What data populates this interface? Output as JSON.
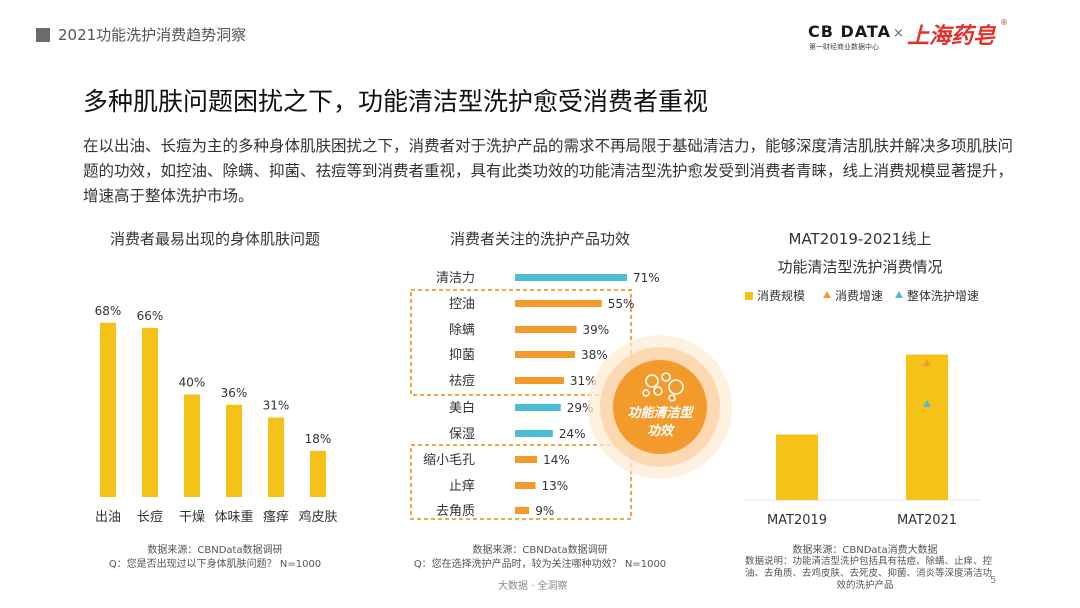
{
  "header": {
    "title": "2021功能洗护消费趋势洞察",
    "logo_main": "CB DATA",
    "logo_sub": "第一财经商业数据中心",
    "logo_times": "×",
    "logo_partner": "上海药皂",
    "logo_reg": "®"
  },
  "headline": "多种肌肤问题困扰之下，功能清洁型洗护愈受消费者重视",
  "intro": "在以出油、长痘为主的多种身体肌肤困扰之下，消费者对于洗护产品的需求不再局限于基础清洁力，能够深度清洁肌肤并解决多项肌肤问题的功效，如控油、除螨、抑菌、祛痘等到消费者重视，具有此类功效的功能清洁型洗护愈发受到消费者青睐，线上消费规模显著提升，增速高于整体洗护市场。",
  "colors": {
    "yellow": "#f5c218",
    "orange": "#f39a2c",
    "blue": "#4dbdd6",
    "dash": "#f39a2c"
  },
  "chart_data": [
    {
      "type": "bar",
      "title": "消费者最易出现的身体肌肤问题",
      "categories": [
        "出油",
        "长痘",
        "干燥",
        "体味重",
        "瘙痒",
        "鸡皮肤"
      ],
      "values": [
        68,
        66,
        40,
        36,
        31,
        18
      ],
      "value_labels": [
        "68%",
        "66%",
        "40%",
        "36%",
        "31%",
        "18%"
      ],
      "unit": "%",
      "ylim": [
        0,
        80
      ],
      "source_lines": [
        "数据来源：CBNData数据调研",
        "Q：您是否出现过以下身体肌肤问题？ N=1000"
      ]
    },
    {
      "type": "bar",
      "orientation": "horizontal",
      "title": "消费者关注的洗护产品功效",
      "categories": [
        "清洁力",
        "控油",
        "除螨",
        "抑菌",
        "祛痘",
        "美白",
        "保湿",
        "缩小毛孔",
        "止痒",
        "去角质"
      ],
      "values": [
        71,
        55,
        39,
        38,
        31,
        29,
        24,
        14,
        13,
        9
      ],
      "value_labels": [
        "71%",
        "55%",
        "39%",
        "38%",
        "31%",
        "29%",
        "24%",
        "14%",
        "13%",
        "9%"
      ],
      "bar_colors": [
        "blue",
        "orange",
        "orange",
        "orange",
        "orange",
        "blue",
        "blue",
        "orange",
        "orange",
        "orange"
      ],
      "unit": "%",
      "badge": "功能清洁型功效",
      "source_lines": [
        "数据来源：CBNData数据调研",
        "Q：您在选择洗护产品时，较为关注哪种功效？ N=1000"
      ]
    },
    {
      "type": "bar",
      "title_lines": [
        "MAT2019-2021线上",
        "功能清洁型洗护消费情况"
      ],
      "categories": [
        "MAT2019",
        "MAT2021"
      ],
      "series": [
        {
          "name": "消费规模",
          "type": "bar",
          "values": [
            0.45,
            1.0
          ],
          "color": "yellow"
        },
        {
          "name": "消费增速",
          "type": "marker",
          "values": [
            null,
            0.94
          ],
          "color": "orange"
        },
        {
          "name": "整体洗护增速",
          "type": "marker",
          "values": [
            null,
            0.66
          ],
          "color": "blue"
        }
      ],
      "ylim": [
        0,
        1.1
      ],
      "source_lines": [
        "数据来源：CBNData消费大数据",
        "数据说明：功能清洁型洗护包括具有祛痘、除螨、止痒、控",
        "油、去角质、去鸡皮肤、去死皮、抑菌、消炎等深度清洁功",
        "效的洗护产品"
      ]
    }
  ],
  "footer": {
    "brand": "大数据 · 全洞察",
    "page": "5"
  }
}
